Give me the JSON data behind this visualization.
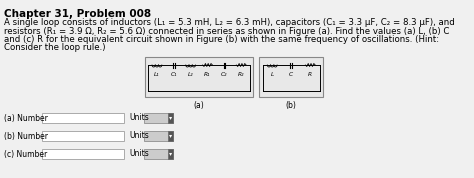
{
  "title": "Chapter 31, Problem 008",
  "body_text": [
    "A single loop consists of inductors (L₁ = 5.3 mH, L₂ = 6.3 mH), capacitors (C₁ = 3.3 μF, C₂ = 8.3 μF), and",
    "resistors (R₁ = 3.9 Ω, R₂ = 5.6 Ω) connected in series as shown in Figure (a). Find the values (a) L, (b) C",
    "and (c) R for the equivalent circuit shown in Figure (b) with the same frequency of oscillations. (Hint:",
    "Consider the loop rule.)"
  ],
  "label_a": "(a)",
  "label_b": "(b)",
  "circuit_a_labels": [
    "L₁",
    "C₁",
    "L₂",
    "R₁",
    "C₂",
    "R₂"
  ],
  "circuit_b_labels": [
    "L",
    "C",
    "R"
  ],
  "input_rows": [
    {
      "label": "(a) Number",
      "units_text": "Units"
    },
    {
      "label": "(b) Number",
      "units_text": "Units"
    },
    {
      "label": "(c) Number",
      "units_text": "Units"
    }
  ],
  "bg_color": "#f0f0f0",
  "text_color": "#000000",
  "title_fontsize": 7.5,
  "body_fontsize": 6.2,
  "input_fontsize": 5.5
}
